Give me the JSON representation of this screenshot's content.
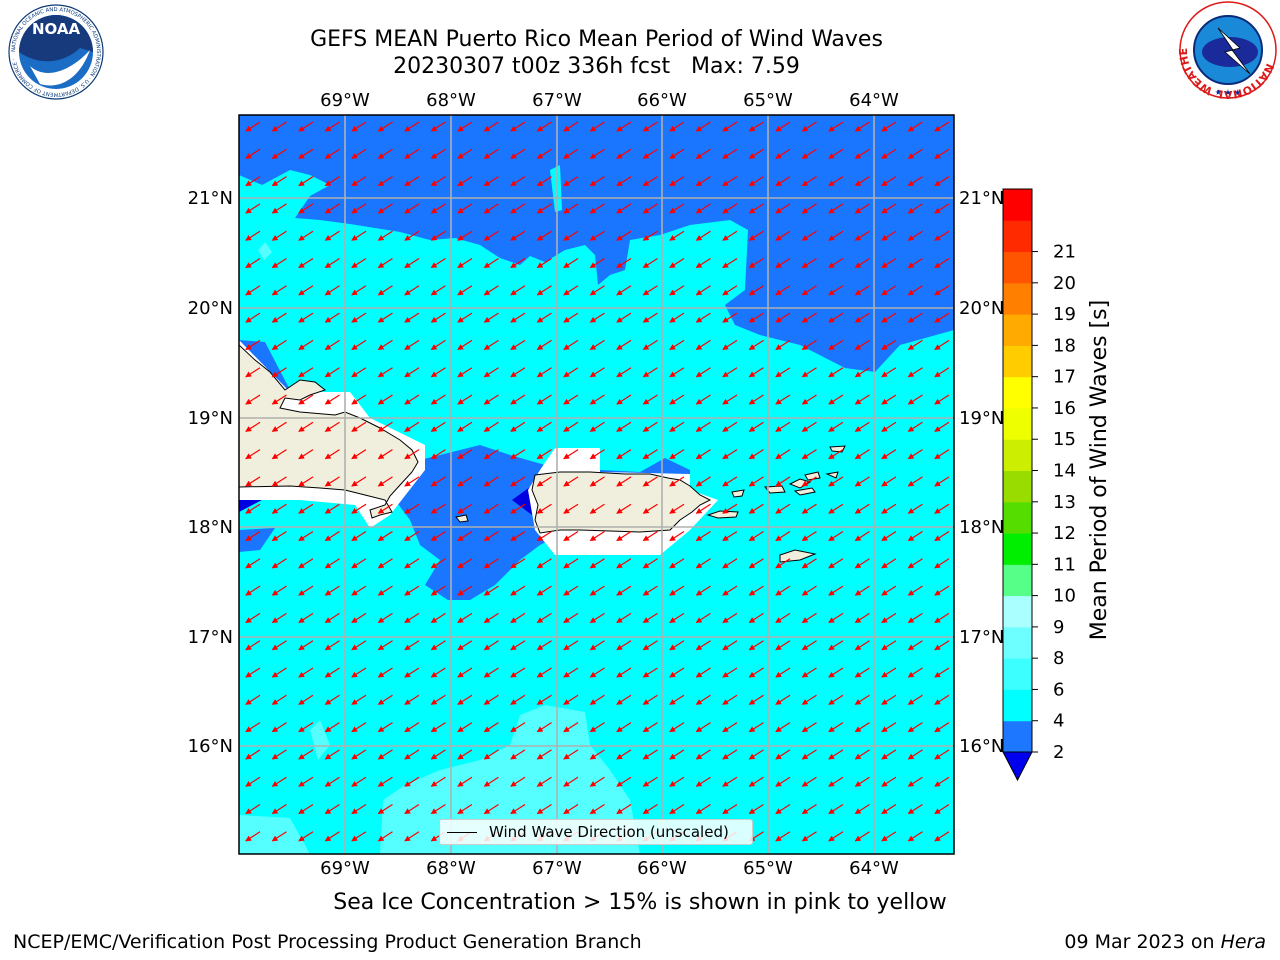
{
  "title": {
    "line1": "GEFS MEAN Puerto Rico Mean Period of Wind Waves",
    "line2": "20230307 t00z 336h fcst   Max: 7.59"
  },
  "map": {
    "lon_range": [
      -70.0,
      -63.25
    ],
    "lat_range": [
      15.0,
      21.75
    ],
    "lon_ticks": [
      "69°W",
      "68°W",
      "67°W",
      "66°W",
      "65°W",
      "64°W"
    ],
    "lat_ticks": [
      "16°N",
      "17°N",
      "18°N",
      "19°N",
      "20°N",
      "21°N"
    ],
    "grid": true,
    "arrow_direction": "towards southwest",
    "colors": {
      "ocean_4_6": "#00ffff",
      "ocean_2_4": "#1a75ff",
      "ocean_6_8": "#55ffff",
      "ocean_lt_2": "#0000e0",
      "land": "#f0eedc",
      "arrow": "#ff0000"
    }
  },
  "legend": {
    "label": "Wind Wave Direction (unscaled)",
    "location": "lower center"
  },
  "colorbar": {
    "label": "Mean Period of Wind Waves [s]",
    "ticks": [
      "2",
      "4",
      "6",
      "8",
      "9",
      "10",
      "11",
      "12",
      "13",
      "14",
      "15",
      "16",
      "17",
      "18",
      "19",
      "20",
      "21"
    ],
    "colors": [
      "#1e78ff",
      "#00ffff",
      "#3cffff",
      "#6dffff",
      "#aaffff",
      "#55ff88",
      "#00ee00",
      "#55dd00",
      "#99dd00",
      "#ccee00",
      "#eeff00",
      "#ffff00",
      "#ffcc00",
      "#ffaa00",
      "#ff8000",
      "#ff5500",
      "#ff2a00",
      "#ff0000"
    ],
    "extend_color": "#0000ee"
  },
  "caption": "Sea Ice Concentration > 15% is shown in pink to yellow",
  "footer": {
    "left": "NCEP/EMC/Verification Post Processing Product Generation Branch",
    "right_prefix": "09 Mar 2023 on ",
    "right_machine": "Hera"
  },
  "logos": {
    "noaa": "NOAA",
    "noaa_ring": "NATIONAL OCEANIC AND ATMOSPHERIC ADMINISTRATION · U.S. DEPARTMENT OF COMMERCE ·",
    "nws_ring": "NATIONAL WEATHER SERVICE"
  }
}
